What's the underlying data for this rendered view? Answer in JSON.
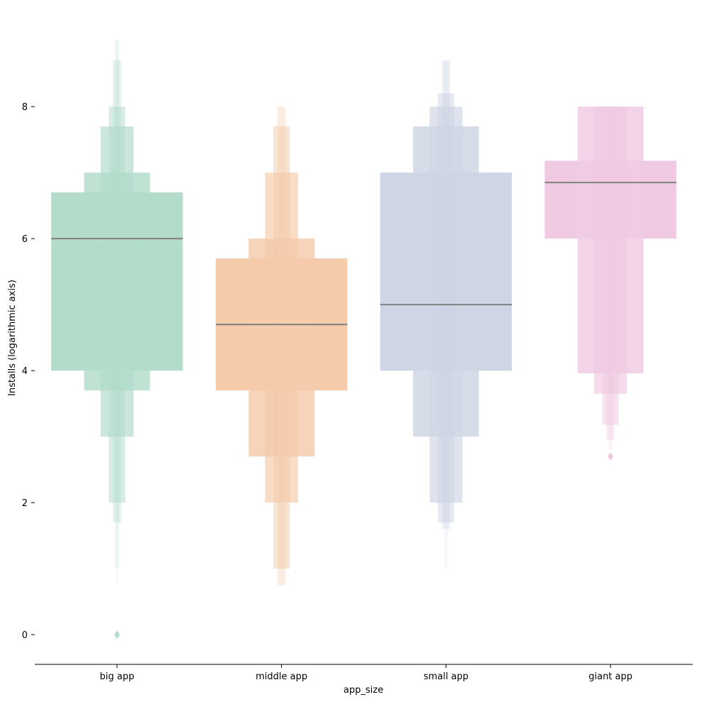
{
  "chart_data": {
    "type": "boxen",
    "title": "",
    "xlabel": "app_size",
    "ylabel": "Installs (logarithmic axis)",
    "categories": [
      "big app",
      "middle app",
      "small app",
      "giant app"
    ],
    "ylim": [
      -0.45,
      9.4
    ],
    "yticks": [
      "0",
      "2",
      "4",
      "6",
      "8"
    ],
    "grid": false,
    "legend": "none",
    "colors": [
      "#b3dccb",
      "#f4cbab",
      "#ced5e4",
      "#f0cae3"
    ],
    "median_color": "#808080",
    "series": [
      {
        "category": "big app",
        "median": 6.0,
        "levels": [
          {
            "low": 4.0,
            "high": 6.7
          },
          {
            "low": 3.7,
            "high": 7.0
          },
          {
            "low": 3.0,
            "high": 7.7
          },
          {
            "low": 2.0,
            "high": 8.0
          },
          {
            "low": 1.7,
            "high": 8.7
          },
          {
            "low": 1.0,
            "high": 9.0
          },
          {
            "low": 0.8,
            "high": 9.0
          }
        ],
        "outliers": [
          0.0
        ]
      },
      {
        "category": "middle app",
        "median": 4.7,
        "levels": [
          {
            "low": 3.7,
            "high": 5.7
          },
          {
            "low": 2.7,
            "high": 6.0
          },
          {
            "low": 2.0,
            "high": 7.0
          },
          {
            "low": 1.0,
            "high": 7.7
          },
          {
            "low": 0.75,
            "high": 8.0
          }
        ],
        "outliers": []
      },
      {
        "category": "small app",
        "median": 5.0,
        "levels": [
          {
            "low": 4.0,
            "high": 7.0
          },
          {
            "low": 3.0,
            "high": 7.7
          },
          {
            "low": 2.0,
            "high": 8.0
          },
          {
            "low": 1.7,
            "high": 8.2
          },
          {
            "low": 1.6,
            "high": 8.7
          },
          {
            "low": 1.0,
            "high": 8.7
          }
        ],
        "outliers": []
      },
      {
        "category": "giant app",
        "median": 6.85,
        "levels": [
          {
            "low": 6.0,
            "high": 7.18
          },
          {
            "low": 3.96,
            "high": 8.0
          },
          {
            "low": 3.65,
            "high": 8.0
          },
          {
            "low": 3.18,
            "high": 8.0
          },
          {
            "low": 2.95,
            "high": 8.0
          },
          {
            "low": 2.8,
            "high": 8.0
          }
        ],
        "outliers": [
          2.7
        ]
      }
    ]
  }
}
